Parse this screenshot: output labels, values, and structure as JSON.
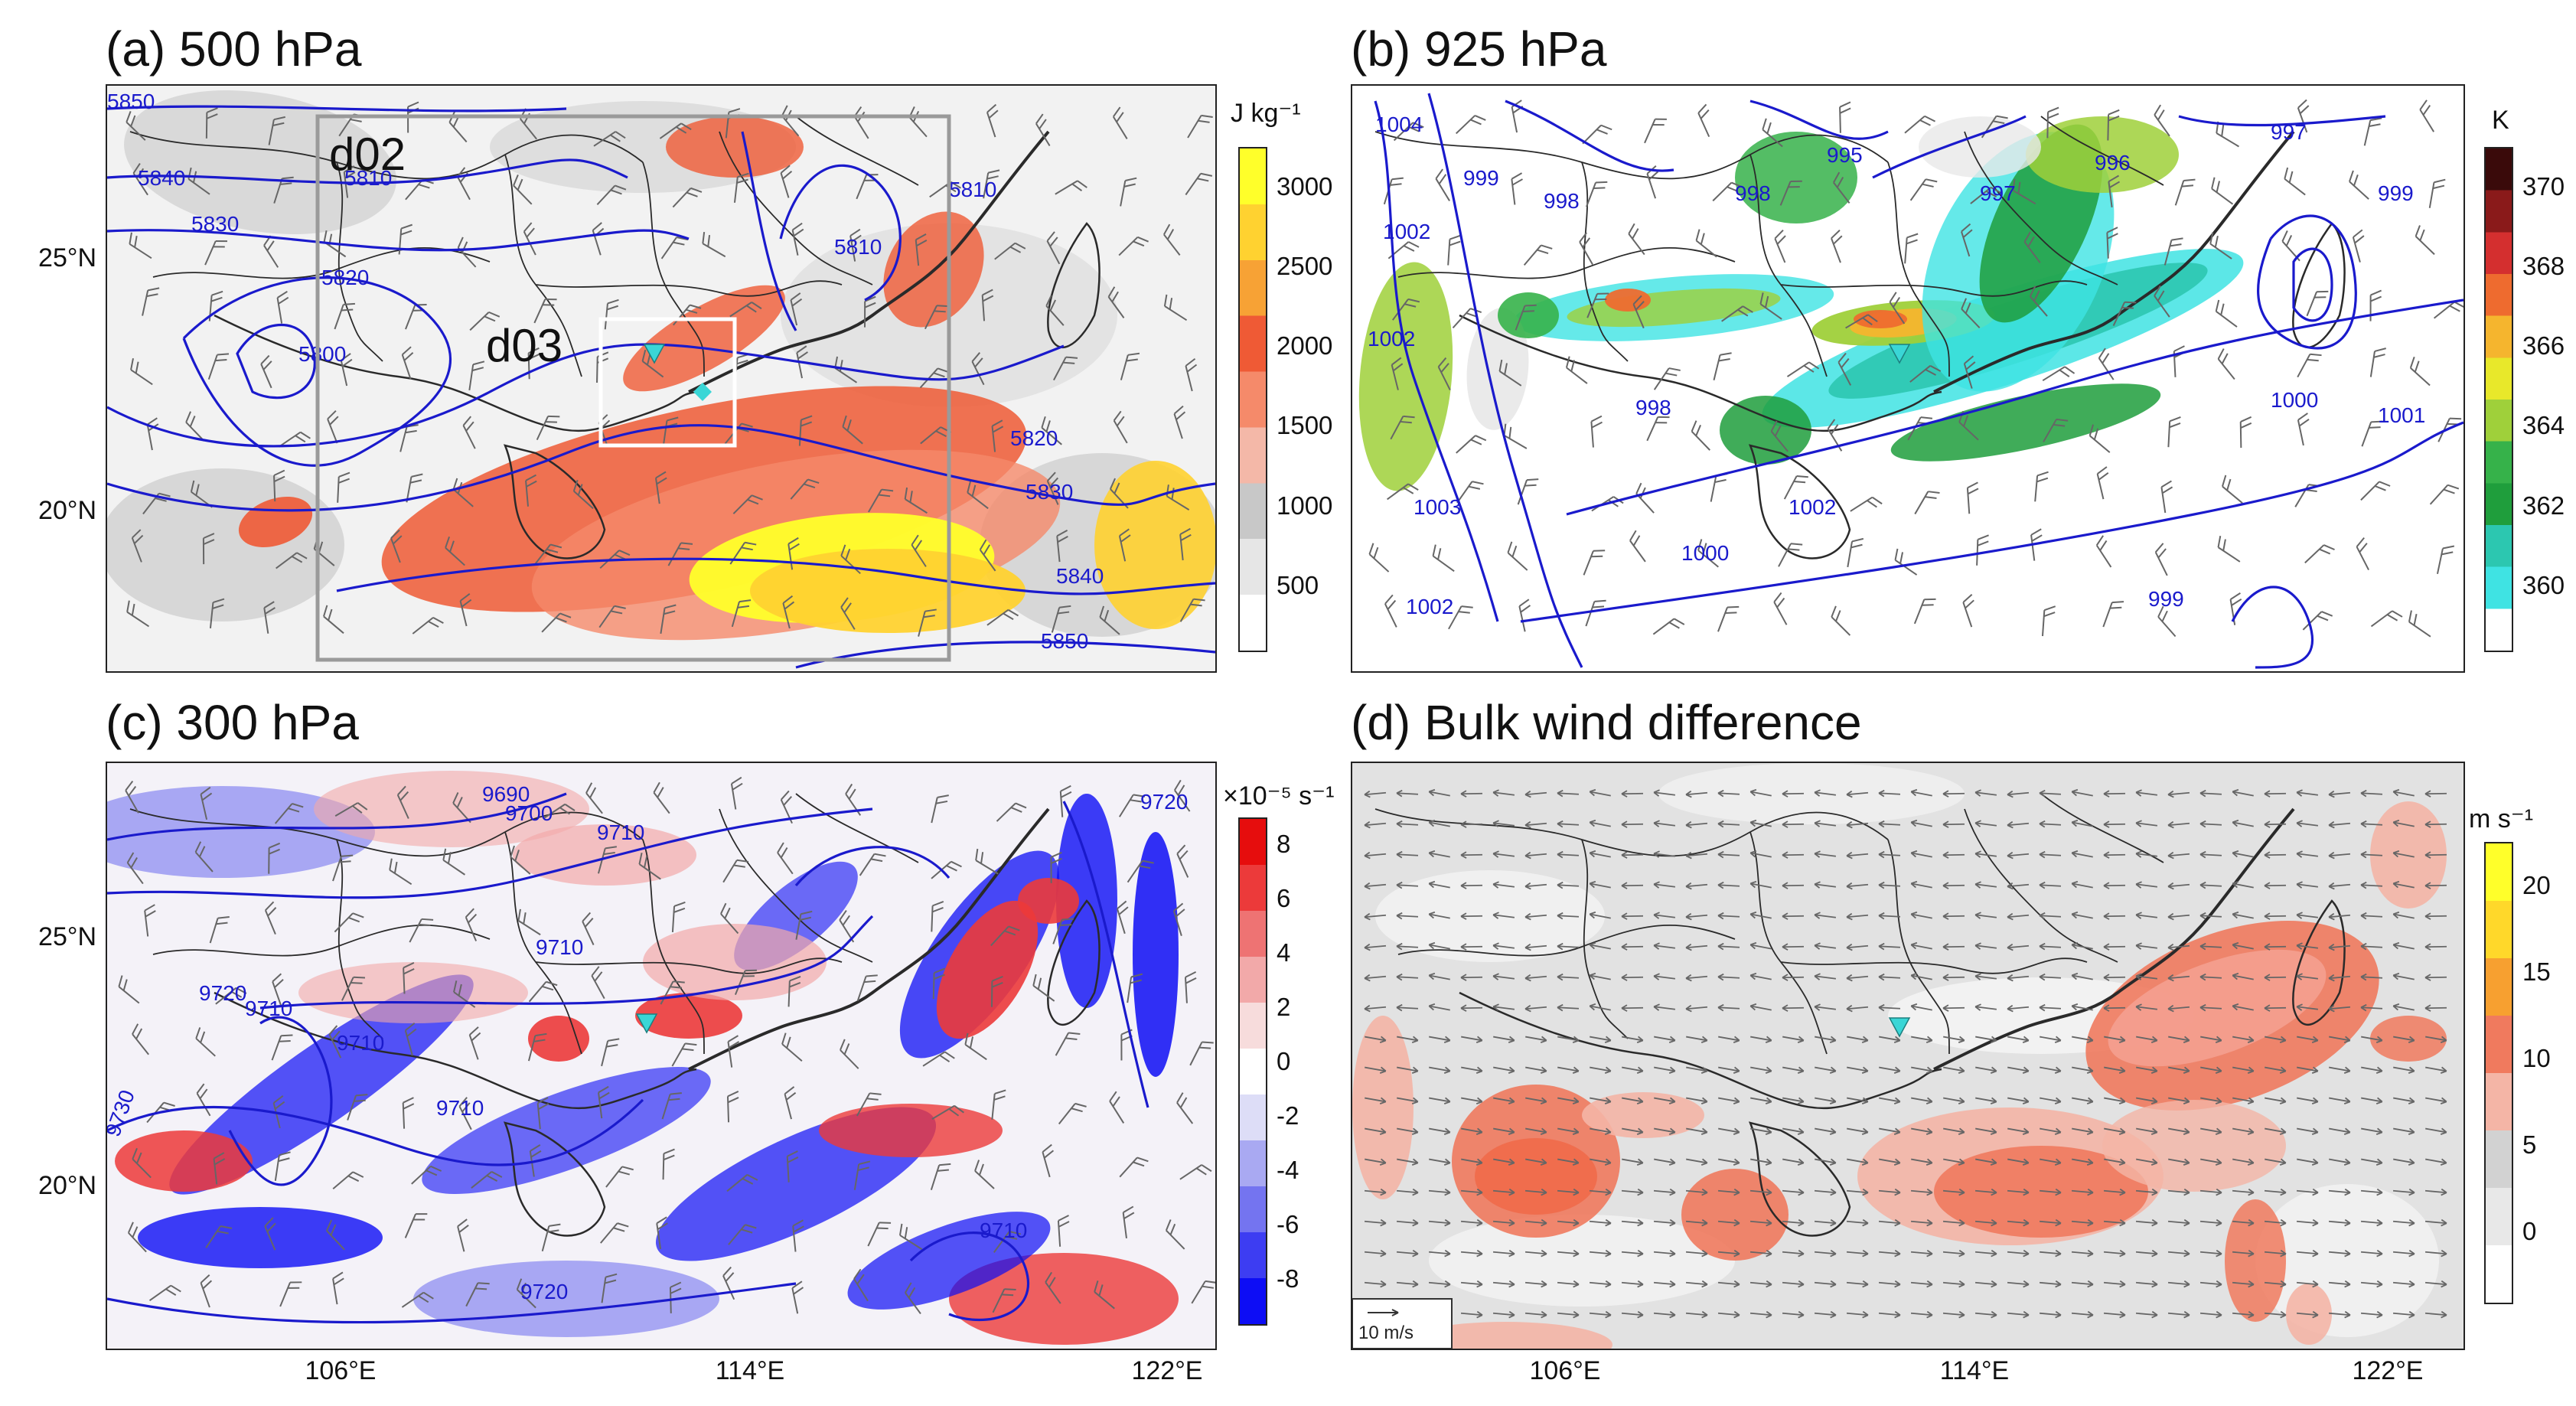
{
  "panels": {
    "a": {
      "title": "(a) 500 hPa",
      "domain_labels": [
        "d02",
        "d03"
      ],
      "contour_labels": [
        "5850",
        "5840",
        "5830",
        "5820",
        "5810",
        "5800",
        "5810",
        "5810",
        "5820",
        "5830",
        "5840",
        "5850"
      ],
      "colorbar": {
        "unit": "J kg⁻¹",
        "ticks": [
          "3000",
          "2500",
          "2000",
          "1500",
          "1000",
          "500"
        ],
        "colors": [
          "#ffffff",
          "#e6e6e6",
          "#c8c8c8",
          "#f4b8a8",
          "#f58a6a",
          "#ef5a35",
          "#f7a235",
          "#ffd230",
          "#ffff2a"
        ]
      }
    },
    "b": {
      "title": "(b) 925 hPa",
      "contour_labels": [
        "1004",
        "1002",
        "999",
        "995",
        "998",
        "996",
        "997",
        "998",
        "997",
        "999",
        "1000",
        "1001",
        "1003",
        "1000",
        "999",
        "1002",
        "1002",
        "1002",
        "998"
      ],
      "colorbar": {
        "unit": "K",
        "ticks": [
          "370",
          "368",
          "366",
          "364",
          "362",
          "360"
        ],
        "colors": [
          "#ffffff",
          "#3fe3e3",
          "#2cc7b0",
          "#1f9e3c",
          "#36b24a",
          "#9fd03a",
          "#e8e82a",
          "#f5b52e",
          "#ee6b2f",
          "#d42f2f",
          "#8a1a1a",
          "#3a0a0a"
        ]
      }
    },
    "c": {
      "title": "(c) 300 hPa",
      "contour_labels": [
        "9690",
        "9700",
        "9710",
        "9710",
        "9720",
        "9710",
        "9710",
        "9710",
        "9730",
        "9720",
        "9710",
        "9720"
      ],
      "colorbar": {
        "unit": "×10⁻⁵ s⁻¹",
        "ticks": [
          "8",
          "6",
          "4",
          "2",
          "0",
          "-2",
          "-4",
          "-6",
          "-8"
        ],
        "colors": [
          "#0d0df5",
          "#3d3df2",
          "#7474f0",
          "#a9a9f2",
          "#ddddf7",
          "#ffffff",
          "#f7dcdc",
          "#f2a9a9",
          "#ee7373",
          "#ec3a3a",
          "#e60d0d"
        ]
      }
    },
    "d": {
      "title": "(d) Bulk wind difference",
      "ref_vector_label": "10 m/s",
      "colorbar": {
        "unit": "m s⁻¹",
        "ticks": [
          "20",
          "15",
          "10",
          "5",
          "0"
        ],
        "colors": [
          "#ffffff",
          "#e8e8e8",
          "#d2d2d2",
          "#f4b5a6",
          "#f07a5e",
          "#f7a030",
          "#ffd82a",
          "#ffff2a"
        ]
      }
    }
  },
  "axes": {
    "lat_labels": [
      "25°N",
      "20°N"
    ],
    "lon_labels": [
      "106°E",
      "114°E",
      "122°E"
    ]
  },
  "colors": {
    "contour": "#1a1acc",
    "borders": "#2a2a2a",
    "domain_box_d02": "#9a9a9a",
    "domain_box_d03": "#ffffff",
    "station_marker": "#3ad6d6"
  }
}
